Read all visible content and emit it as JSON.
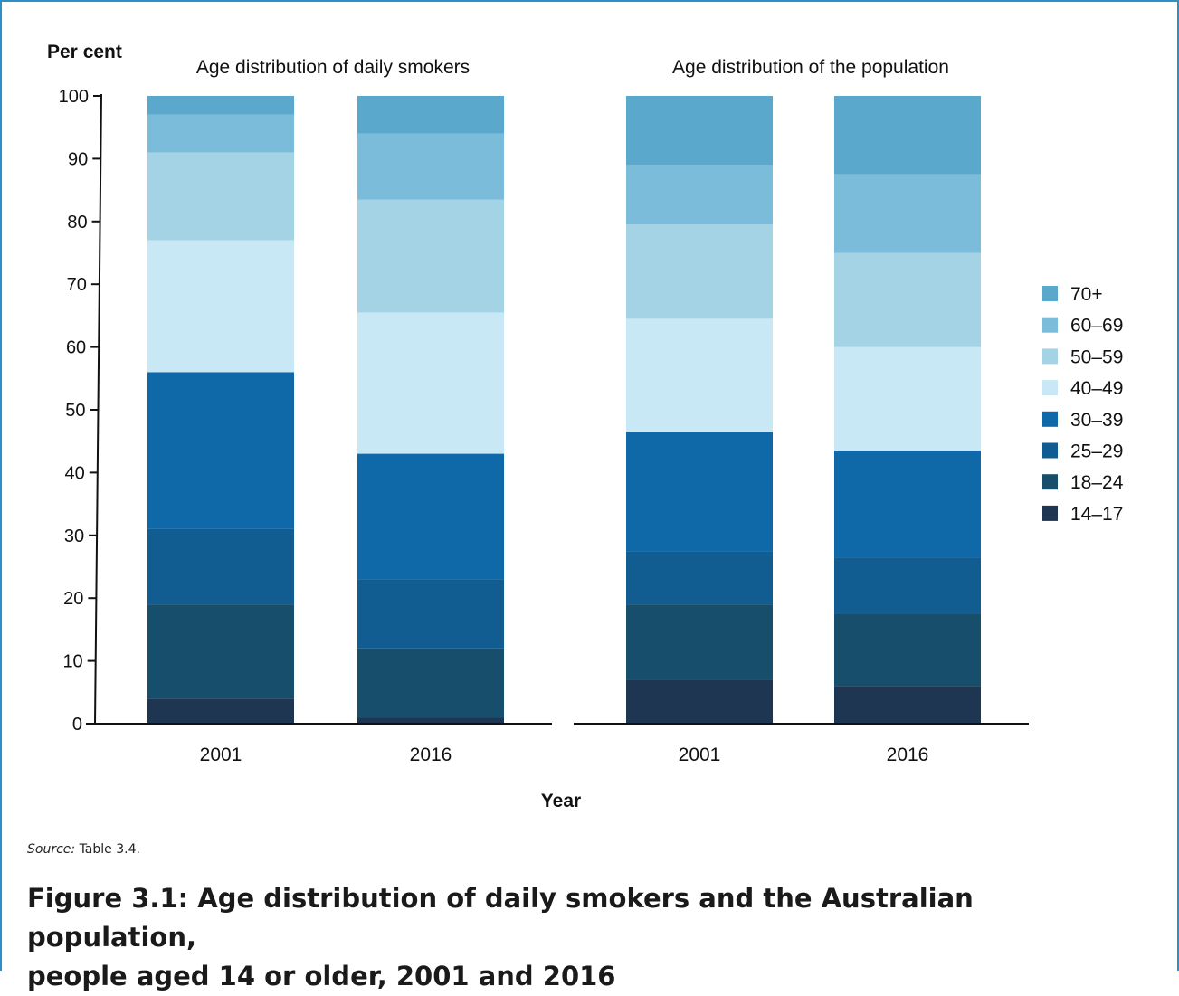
{
  "figure": {
    "source_label": "Source:",
    "source_text": "Table 3.4.",
    "caption_line1": "Figure 3.1: Age distribution of daily smokers and the Australian population,",
    "caption_line2": "people aged 14 or older, 2001 and 2016"
  },
  "chart_data": {
    "type": "bar",
    "stacked": true,
    "ylabel": "Per cent",
    "xlabel": "Year",
    "ylim": [
      0,
      100
    ],
    "yticks": [
      0,
      10,
      20,
      30,
      40,
      50,
      60,
      70,
      80,
      90,
      100
    ],
    "legend_position": "right",
    "legend": [
      {
        "name": "70+",
        "color": "#5aa9cc"
      },
      {
        "name": "60–69",
        "color": "#7bbcdb"
      },
      {
        "name": "50–59",
        "color": "#a3d3e4"
      },
      {
        "name": "40–49",
        "color": "#c9e8f6"
      },
      {
        "name": "30–39",
        "color": "#0f68a7"
      },
      {
        "name": "25–29",
        "color": "#115d92"
      },
      {
        "name": "18–24",
        "color": "#174e6c"
      },
      {
        "name": "14–17",
        "color": "#1e3652"
      }
    ],
    "panels": [
      {
        "title": "Age distribution of daily smokers",
        "categories": [
          "2001",
          "2016"
        ],
        "series": [
          {
            "name": "14–17",
            "values": [
              4,
              1
            ]
          },
          {
            "name": "18–24",
            "values": [
              15,
              11
            ]
          },
          {
            "name": "25–29",
            "values": [
              12,
              11
            ]
          },
          {
            "name": "30–39",
            "values": [
              25,
              20
            ]
          },
          {
            "name": "40–49",
            "values": [
              21,
              22.5
            ]
          },
          {
            "name": "50–59",
            "values": [
              14,
              18
            ]
          },
          {
            "name": "60–69",
            "values": [
              6,
              10.5
            ]
          },
          {
            "name": "70+",
            "values": [
              3,
              6
            ]
          }
        ]
      },
      {
        "title": "Age distribution of the population",
        "categories": [
          "2001",
          "2016"
        ],
        "series": [
          {
            "name": "14–17",
            "values": [
              7,
              6
            ]
          },
          {
            "name": "18–24",
            "values": [
              12,
              11.5
            ]
          },
          {
            "name": "25–29",
            "values": [
              8.5,
              9
            ]
          },
          {
            "name": "30–39",
            "values": [
              19,
              17
            ]
          },
          {
            "name": "40–49",
            "values": [
              18,
              16.5
            ]
          },
          {
            "name": "50–59",
            "values": [
              15,
              15
            ]
          },
          {
            "name": "60–69",
            "values": [
              9.5,
              12.5
            ]
          },
          {
            "name": "70+",
            "values": [
              11,
              12.5
            ]
          }
        ]
      }
    ]
  }
}
